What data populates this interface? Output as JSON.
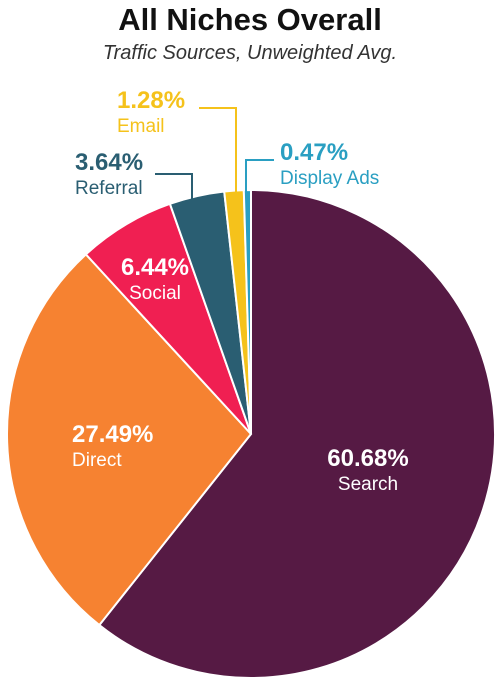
{
  "chart_data": {
    "type": "pie",
    "title": "All Niches Overall",
    "subtitle": "Traffic Sources, Unweighted Avg.",
    "slices": [
      {
        "name": "Search",
        "value": 60.68,
        "label": "60.68%",
        "color": "#561A44",
        "text_color": "#ffffff"
      },
      {
        "name": "Direct",
        "value": 27.49,
        "label": "27.49%",
        "color": "#F68231",
        "text_color": "#ffffff"
      },
      {
        "name": "Social",
        "value": 6.44,
        "label": "6.44%",
        "color": "#F01F52",
        "text_color": "#ffffff"
      },
      {
        "name": "Referral",
        "value": 3.64,
        "label": "3.64%",
        "color": "#2A5E72",
        "text_color": "#2A5E72"
      },
      {
        "name": "Email",
        "value": 1.28,
        "label": "1.28%",
        "color": "#F5C21B",
        "text_color": "#F5C21B"
      },
      {
        "name": "Display Ads",
        "value": 0.47,
        "label": "0.47%",
        "color": "#2A9FC2",
        "text_color": "#2A9FC2"
      }
    ]
  }
}
